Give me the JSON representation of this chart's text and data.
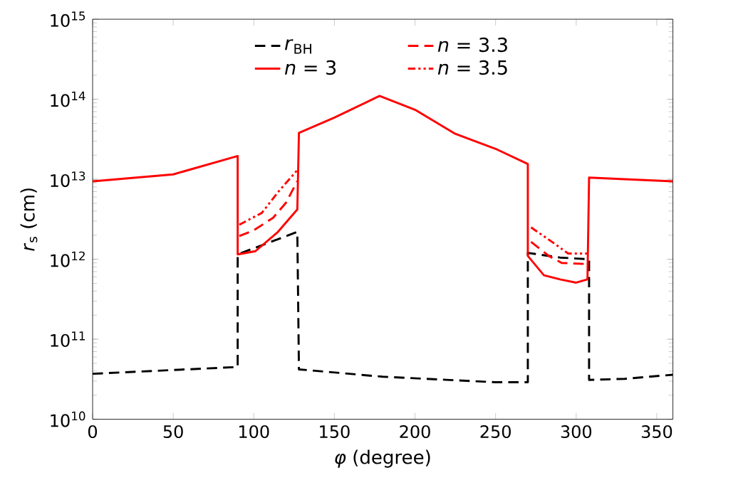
{
  "chart_data": {
    "type": "line",
    "xlabel": "*φ* (degree)",
    "ylabel": "*r*$_{s}$ (cm)",
    "log": "y",
    "xlim": [
      0,
      360
    ],
    "xticks": [
      0,
      50,
      100,
      150,
      200,
      250,
      300,
      350
    ],
    "ylim": [
      10000000000.0,
      1000000000000000.0
    ],
    "yticks": [
      {
        "value": 10000000000.0,
        "label": "10$^{10}$"
      },
      {
        "value": 100000000000.0,
        "label": "10$^{11}$"
      },
      {
        "value": 1000000000000.0,
        "label": "10$^{12}$"
      },
      {
        "value": 10000000000000.0,
        "label": "10$^{13}$"
      },
      {
        "value": 100000000000000.0,
        "label": "10$^{14}$"
      },
      {
        "value": 1000000000000000.0,
        "label": "10$^{15}$"
      }
    ],
    "grid": false,
    "legend": "top",
    "marker": "none",
    "series": [
      {
        "name": "*r*$_{BH}$",
        "color": "#000000",
        "line_style": "dashed",
        "x": [
          0,
          90,
          90,
          127,
          128,
          180,
          250,
          270,
          270,
          290,
          308,
          308,
          330,
          360
        ],
        "values": [
          37000000000.0,
          45000000000.0,
          1150000000000.0,
          2200000000000.0,
          42000000000.0,
          34000000000.0,
          29000000000.0,
          29000000000.0,
          1200000000000.0,
          1050000000000.0,
          1000000000000.0,
          31000000000.0,
          32000000000.0,
          36000000000.0
        ]
      },
      {
        "name": "*n* = 3",
        "color": "#ff0000",
        "line_style": "solid",
        "x": [
          0,
          50,
          90,
          90,
          101,
          115,
          127,
          128,
          150,
          178,
          200,
          225,
          250,
          270,
          270,
          280,
          290,
          300,
          307,
          308,
          330,
          360
        ],
        "values": [
          9400000000000.0,
          11500000000000.0,
          19500000000000.0,
          1150000000000.0,
          1260000000000.0,
          2200000000000.0,
          4200000000000.0,
          38000000000000.0,
          59000000000000.0,
          110000000000000.0,
          74000000000000.0,
          37000000000000.0,
          24000000000000.0,
          15500000000000.0,
          1100000000000.0,
          630000000000.0,
          560000000000.0,
          510000000000.0,
          560000000000.0,
          10500000000000.0,
          10000000000000.0,
          9400000000000.0
        ]
      },
      {
        "name": "*n* = 3.3",
        "color": "#ff0000",
        "line_style": "dashed",
        "x": [
          91,
          100,
          112,
          120,
          127,
          200,
          272,
          283,
          291,
          307
        ],
        "values": [
          1950000000000.0,
          2300000000000.0,
          3300000000000.0,
          5100000000000.0,
          9500000000000.0,
          null,
          1650000000000.0,
          1100000000000.0,
          900000000000.0,
          870000000000.0
        ]
      },
      {
        "name": "*n* = 3.5",
        "color": "#ff0000",
        "line_style": "dotted",
        "x": [
          91,
          105,
          115,
          127,
          200,
          272,
          285,
          295,
          307
        ],
        "values": [
          2700000000000.0,
          3800000000000.0,
          6900000000000.0,
          13000000000000.0,
          null,
          2500000000000.0,
          1650000000000.0,
          1180000000000.0,
          1180000000000.0
        ]
      }
    ]
  }
}
